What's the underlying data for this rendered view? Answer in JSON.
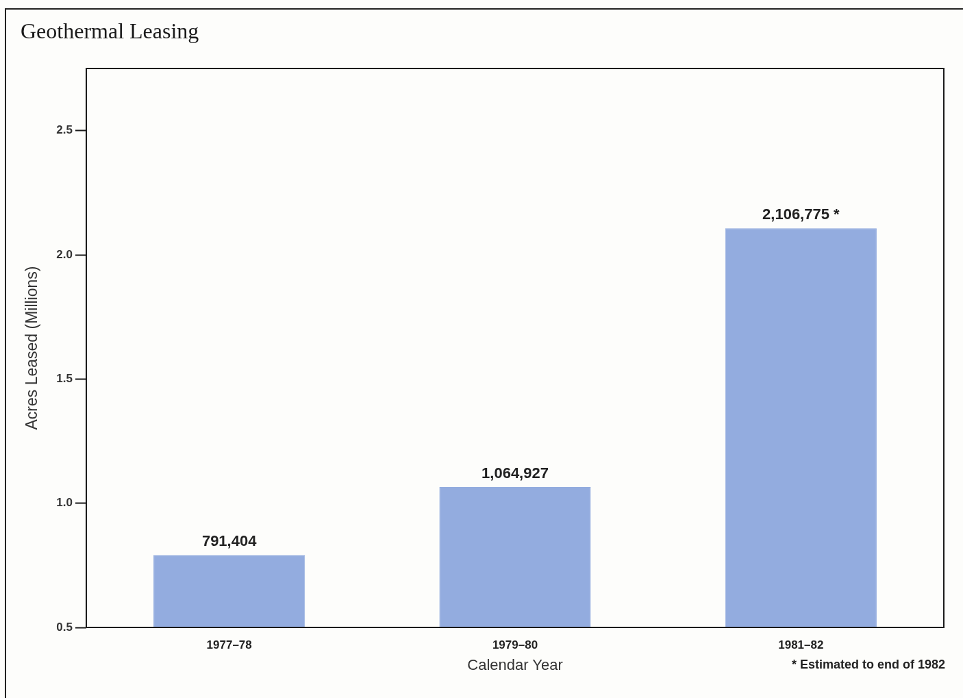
{
  "chart_data": {
    "type": "bar",
    "title": "Geothermal Leasing",
    "xlabel": "Calendar Year",
    "ylabel": "Acres Leased (Millions)",
    "categories": [
      "1977–78",
      "1979–80",
      "1981–82"
    ],
    "values": [
      0.791404,
      1.064927,
      2.106775
    ],
    "color": "#93acdf",
    "ylim": [
      0.5,
      2.75
    ],
    "yticks": [
      0.5,
      {
        "value": 1,
        "label": "1.0"
      },
      1.5,
      {
        "value": 2,
        "label": "2.0"
      },
      2.5
    ],
    "grid": false,
    "legend": false,
    "annotations": [
      {
        "text": "791,404",
        "x": "1977–78",
        "y": 0.791404
      },
      {
        "text": "1,064,927",
        "x": "1979–80",
        "y": 1.064927
      },
      {
        "text": "2,106,775 *",
        "x": "1981–82",
        "y": 2.106775
      },
      "* Estimated to end of 1982"
    ]
  }
}
